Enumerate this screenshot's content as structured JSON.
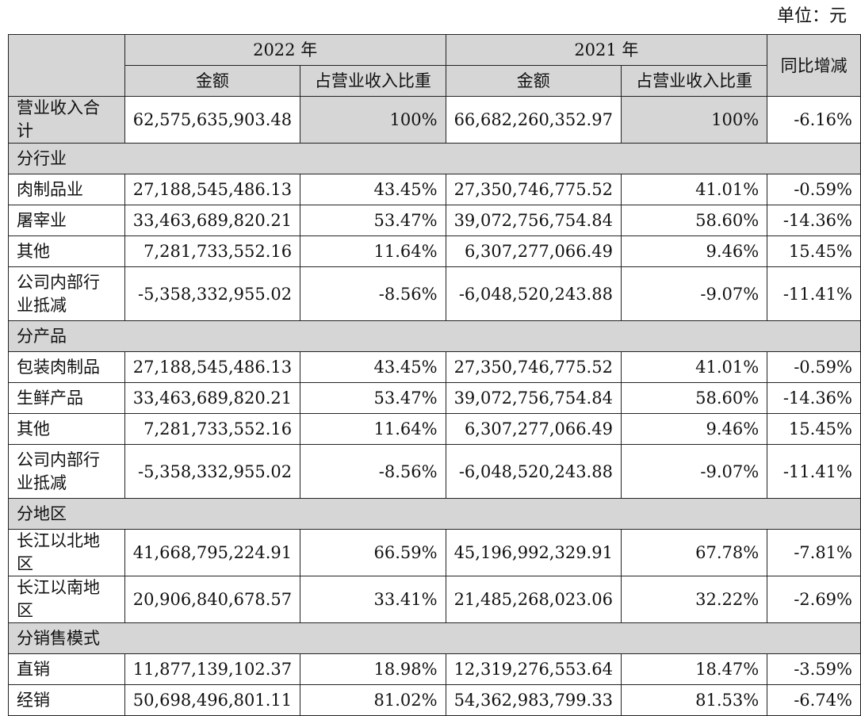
{
  "unit_label": "单位：元",
  "header": {
    "year1": "2022 年",
    "year2": "2021 年",
    "amount": "金额",
    "ratio": "占营业收入比重",
    "yoy": "同比增减"
  },
  "total": {
    "label": "营业收入合计",
    "amt2022": "62,575,635,903.48",
    "pct2022": "100%",
    "amt2021": "66,682,260,352.97",
    "pct2021": "100%",
    "yoy": "-6.16%"
  },
  "sections": [
    {
      "title": "分行业",
      "rows": [
        {
          "label": "肉制品业",
          "amt2022": "27,188,545,486.13",
          "pct2022": "43.45%",
          "amt2021": "27,350,746,775.52",
          "pct2021": "41.01%",
          "yoy": "-0.59%"
        },
        {
          "label": "屠宰业",
          "amt2022": "33,463,689,820.21",
          "pct2022": "53.47%",
          "amt2021": "39,072,756,754.84",
          "pct2021": "58.60%",
          "yoy": "-14.36%"
        },
        {
          "label": "其他",
          "amt2022": "7,281,733,552.16",
          "pct2022": "11.64%",
          "amt2021": "6,307,277,066.49",
          "pct2021": "9.46%",
          "yoy": "15.45%"
        },
        {
          "label": "公司内部行业抵减",
          "amt2022": "-5,358,332,955.02",
          "pct2022": "-8.56%",
          "amt2021": "-6,048,520,243.88",
          "pct2021": "-9.07%",
          "yoy": "-11.41%"
        }
      ]
    },
    {
      "title": "分产品",
      "rows": [
        {
          "label": "包装肉制品",
          "amt2022": "27,188,545,486.13",
          "pct2022": "43.45%",
          "amt2021": "27,350,746,775.52",
          "pct2021": "41.01%",
          "yoy": "-0.59%"
        },
        {
          "label": "生鲜产品",
          "amt2022": "33,463,689,820.21",
          "pct2022": "53.47%",
          "amt2021": "39,072,756,754.84",
          "pct2021": "58.60%",
          "yoy": "-14.36%"
        },
        {
          "label": "其他",
          "amt2022": "7,281,733,552.16",
          "pct2022": "11.64%",
          "amt2021": "6,307,277,066.49",
          "pct2021": "9.46%",
          "yoy": "15.45%"
        },
        {
          "label": "公司内部行业抵减",
          "amt2022": "-5,358,332,955.02",
          "pct2022": "-8.56%",
          "amt2021": "-6,048,520,243.88",
          "pct2021": "-9.07%",
          "yoy": "-11.41%"
        }
      ]
    },
    {
      "title": "分地区",
      "rows": [
        {
          "label": "长江以北地区",
          "amt2022": "41,668,795,224.91",
          "pct2022": "66.59%",
          "amt2021": "45,196,992,329.91",
          "pct2021": "67.78%",
          "yoy": "-7.81%"
        },
        {
          "label": "长江以南地区",
          "amt2022": "20,906,840,678.57",
          "pct2022": "33.41%",
          "amt2021": "21,485,268,023.06",
          "pct2021": "32.22%",
          "yoy": "-2.69%"
        }
      ]
    },
    {
      "title": "分销售模式",
      "rows": [
        {
          "label": "直销",
          "amt2022": "11,877,139,102.37",
          "pct2022": "18.98%",
          "amt2021": "12,319,276,553.64",
          "pct2021": "18.47%",
          "yoy": "-3.59%"
        },
        {
          "label": "经销",
          "amt2022": "50,698,496,801.11",
          "pct2022": "81.02%",
          "amt2021": "54,362,983,799.33",
          "pct2021": "81.53%",
          "yoy": "-6.74%"
        }
      ]
    }
  ]
}
